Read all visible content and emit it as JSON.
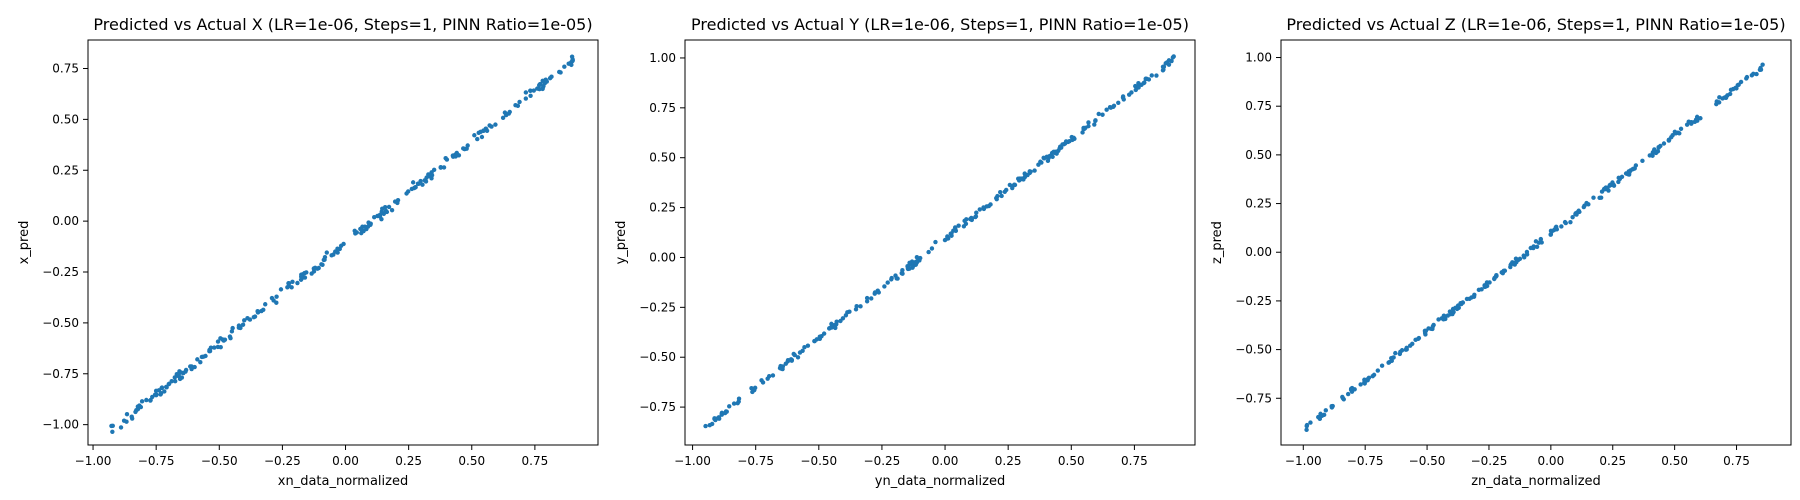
{
  "colors": {
    "point": "#1f77b4",
    "axis": "#000000"
  },
  "chart_data": [
    {
      "type": "scatter",
      "title": "Predicted vs Actual X (LR=1e-06, Steps=1, PINN Ratio=1e-05)",
      "xlabel": "xn_data_normalized",
      "ylabel": "x_pred",
      "xlim": [
        -1.02,
        1.0
      ],
      "ylim": [
        -1.1,
        0.89
      ],
      "xticks": [
        -1.0,
        -0.75,
        -0.5,
        -0.25,
        0.0,
        0.25,
        0.5,
        0.75
      ],
      "xtick_labels": [
        "−1.00",
        "−0.75",
        "−0.50",
        "−0.25",
        "0.00",
        "0.25",
        "0.50",
        "0.75"
      ],
      "yticks": [
        -1.0,
        -0.75,
        -0.5,
        -0.25,
        0.0,
        0.25,
        0.5,
        0.75
      ],
      "ytick_labels": [
        "−1.00",
        "−0.75",
        "−0.50",
        "−0.25",
        "0.00",
        "0.25",
        "0.50",
        "0.75"
      ],
      "fit": {
        "x_start": -0.93,
        "x_end": 0.9,
        "y_start": -1.03,
        "y_end": 0.79,
        "n_points": 250,
        "noise": 0.012
      },
      "grid": false
    },
    {
      "type": "scatter",
      "title": "Predicted vs Actual Y (LR=1e-06, Steps=1, PINN Ratio=1e-05)",
      "xlabel": "yn_data_normalized",
      "ylabel": "y_pred",
      "xlim": [
        -1.03,
        0.99
      ],
      "ylim": [
        -0.94,
        1.09
      ],
      "xticks": [
        -1.0,
        -0.75,
        -0.5,
        -0.25,
        0.0,
        0.25,
        0.5,
        0.75
      ],
      "xtick_labels": [
        "−1.00",
        "−0.75",
        "−0.50",
        "−0.25",
        "0.00",
        "0.25",
        "0.50",
        "0.75"
      ],
      "yticks": [
        -0.75,
        -0.5,
        -0.25,
        0.0,
        0.25,
        0.5,
        0.75,
        1.0
      ],
      "ytick_labels": [
        "−0.75",
        "−0.50",
        "−0.25",
        "0.00",
        "0.25",
        "0.50",
        "0.75",
        "1.00"
      ],
      "fit": {
        "x_start": -0.95,
        "x_end": 0.91,
        "y_start": -0.85,
        "y_end": 1.0,
        "n_points": 250,
        "noise": 0.008
      },
      "grid": false
    },
    {
      "type": "scatter",
      "title": "Predicted vs Actual Z (LR=1e-06, Steps=1, PINN Ratio=1e-05)",
      "xlabel": "zn_data_normalized",
      "ylabel": "z_pred",
      "xlim": [
        -1.09,
        0.97
      ],
      "ylim": [
        -0.99,
        1.09
      ],
      "xticks": [
        -1.0,
        -0.75,
        -0.5,
        -0.25,
        0.0,
        0.25,
        0.5,
        0.75
      ],
      "xtick_labels": [
        "−1.00",
        "−0.75",
        "−0.50",
        "−0.25",
        "0.00",
        "0.25",
        "0.50",
        "0.75"
      ],
      "yticks": [
        -0.75,
        -0.5,
        -0.25,
        0.0,
        0.25,
        0.5,
        0.75,
        1.0
      ],
      "ytick_labels": [
        "−0.75",
        "−0.50",
        "−0.25",
        "0.00",
        "0.25",
        "0.50",
        "0.75",
        "1.00"
      ],
      "fit": {
        "x_start": -0.99,
        "x_end": 0.88,
        "y_start": -0.9,
        "y_end": 0.98,
        "n_points": 250,
        "noise": 0.008
      },
      "grid": false
    }
  ]
}
